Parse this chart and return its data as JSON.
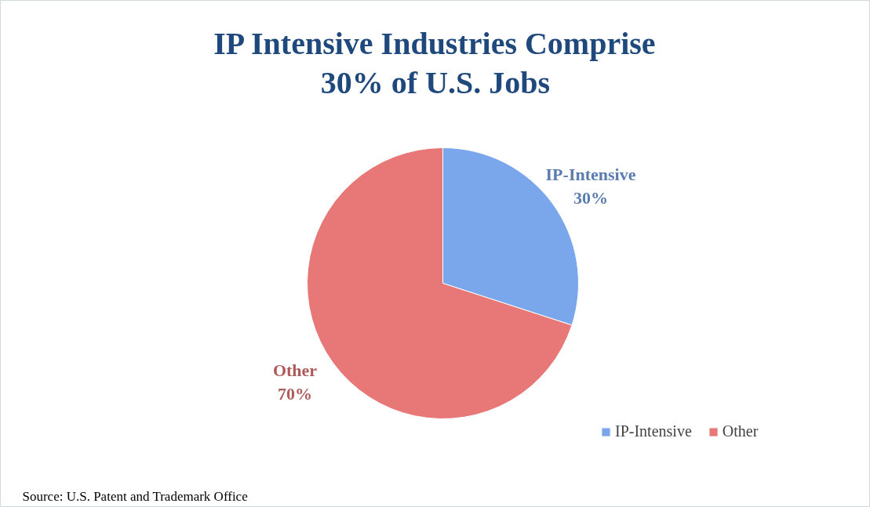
{
  "chart_data": {
    "type": "pie",
    "title": "IP Intensive Industries Comprise\n30% of U.S. Jobs",
    "categories": [
      "IP-Intensive",
      "Other"
    ],
    "values": [
      30,
      70
    ],
    "colors": [
      "#7aa6ec",
      "#e87878"
    ],
    "value_labels": [
      "30%",
      "70%"
    ],
    "legend": "bottom right",
    "annotations": [
      "Source: U.S. Patent and Trademark Office"
    ]
  }
}
